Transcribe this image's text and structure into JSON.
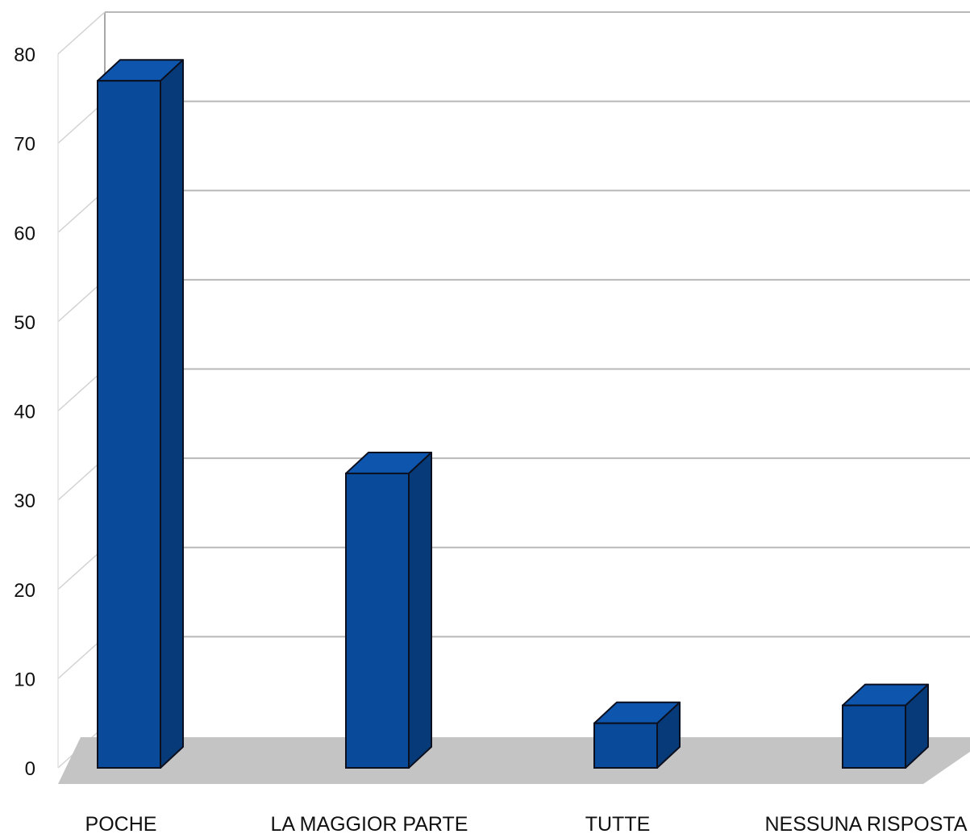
{
  "chart_data": {
    "type": "bar",
    "title": "",
    "xlabel": "",
    "ylabel": "",
    "categories": [
      "POCHE",
      "LA MAGGIOR PARTE",
      "TUTTE",
      "NESSUNA RISPOSTA"
    ],
    "values": [
      77,
      33,
      5,
      7
    ],
    "ylim": [
      0,
      80
    ],
    "yticks": [
      "0",
      "10",
      "20",
      "30",
      "40",
      "50",
      "60",
      "70",
      "80"
    ],
    "grid": true,
    "legend": "none",
    "colors": {
      "bar_front": "#0a4a9a",
      "bar_side": "#073a78",
      "bar_top": "#0d55ad",
      "bar_outline": "#0b0f1e",
      "floor": "#c4c4c4",
      "gridline": "#b8b8b8"
    }
  }
}
